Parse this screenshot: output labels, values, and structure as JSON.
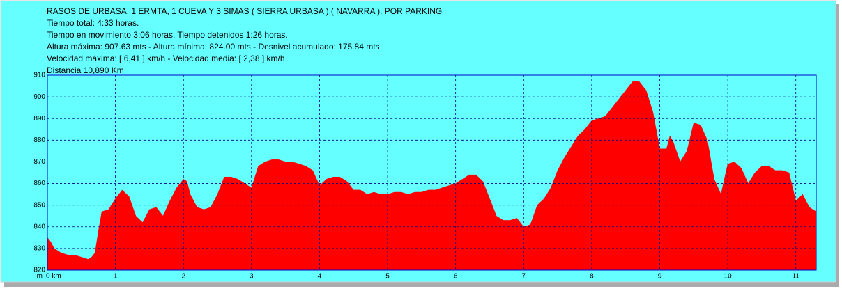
{
  "chart_data": {
    "type": "area",
    "title": "RASOS DE URBASA, 1 ERMTA, 1 CUEVA Y 3 SIMAS ( SIERRA URBASA ) ( NAVARRA ). POR PARKING",
    "annotations": [
      "Tiempo total: 4:33  horas.",
      "Tiempo en movimiento 3:06 horas. Tiempo detenidos 1:26 horas.",
      "Altura máxima: 907.63 mts - Altura mínima: 824.00 mts - Desnivel acumulado: 175.84 mts",
      "Velocidad máxima:  [ 6,41 ] km/h - Velocidad media: [ 2,38 ] km/h",
      "Distancia 10,890 Km"
    ],
    "ylabel": "m",
    "color": "#ff0000",
    "grid": true,
    "xlim": [
      0,
      11.3
    ],
    "ylim": [
      820,
      910
    ],
    "xticks": [
      {
        "value": 0,
        "label": "0 km"
      },
      1,
      2,
      3,
      4,
      5,
      6,
      7,
      8,
      9,
      10,
      11
    ],
    "yticks": [
      820,
      830,
      840,
      850,
      860,
      870,
      880,
      890,
      900,
      910
    ],
    "x": [
      0,
      0.05,
      0.1,
      0.2,
      0.3,
      0.4,
      0.5,
      0.6,
      0.65,
      0.7,
      0.75,
      0.8,
      0.9,
      1.0,
      1.1,
      1.2,
      1.3,
      1.4,
      1.5,
      1.6,
      1.7,
      1.8,
      1.9,
      2.0,
      2.05,
      2.1,
      2.2,
      2.3,
      2.4,
      2.5,
      2.6,
      2.7,
      2.8,
      2.9,
      3.0,
      3.1,
      3.2,
      3.3,
      3.4,
      3.5,
      3.6,
      3.7,
      3.8,
      3.9,
      4.0,
      4.1,
      4.2,
      4.3,
      4.4,
      4.5,
      4.6,
      4.7,
      4.8,
      4.9,
      5.0,
      5.1,
      5.2,
      5.3,
      5.4,
      5.5,
      5.6,
      5.7,
      5.8,
      5.9,
      6.0,
      6.1,
      6.2,
      6.3,
      6.4,
      6.5,
      6.6,
      6.7,
      6.8,
      6.9,
      7.0,
      7.1,
      7.2,
      7.3,
      7.4,
      7.5,
      7.6,
      7.7,
      7.8,
      7.9,
      8.0,
      8.1,
      8.2,
      8.3,
      8.4,
      8.5,
      8.6,
      8.7,
      8.8,
      8.9,
      9.0,
      9.1,
      9.15,
      9.2,
      9.3,
      9.4,
      9.5,
      9.6,
      9.7,
      9.8,
      9.9,
      10.0,
      10.1,
      10.2,
      10.3,
      10.4,
      10.5,
      10.6,
      10.7,
      10.8,
      10.9,
      11.0,
      11.1,
      11.2,
      11.3
    ],
    "values": [
      835,
      833,
      830,
      828,
      827,
      827,
      826,
      825,
      826,
      828,
      838,
      847,
      848,
      853,
      857,
      854,
      845,
      842,
      848,
      849,
      845,
      852,
      858,
      862,
      861,
      855,
      849,
      848,
      849,
      855,
      863,
      863,
      862,
      860,
      858,
      868,
      870,
      871,
      871,
      870,
      870,
      869,
      868,
      866,
      859,
      862,
      863,
      863,
      861,
      857,
      857,
      855,
      856,
      855,
      855,
      856,
      856,
      855,
      856,
      856,
      857,
      857,
      858,
      859,
      860,
      862,
      864,
      864,
      861,
      853,
      845,
      843,
      843,
      844,
      840,
      841,
      850,
      853,
      858,
      866,
      872,
      877,
      882,
      885,
      889,
      890,
      891,
      895,
      899,
      903,
      907,
      907,
      903,
      893,
      876,
      876,
      882,
      879,
      870,
      875,
      888,
      887,
      880,
      862,
      855,
      869,
      870,
      867,
      860,
      865,
      868,
      868,
      866,
      866,
      865,
      852,
      855,
      849,
      847
    ]
  }
}
